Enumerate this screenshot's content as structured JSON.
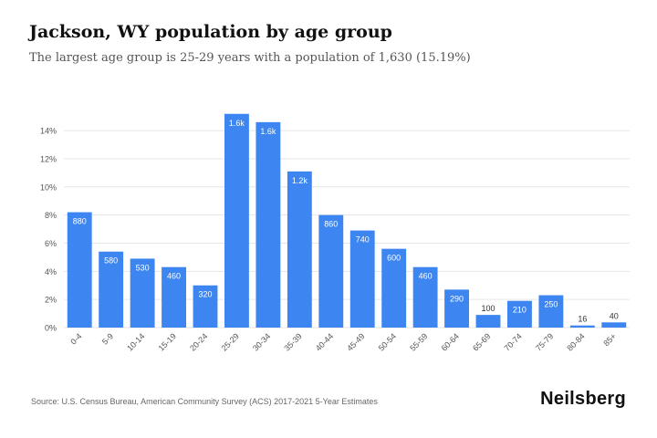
{
  "header": {
    "title": "Jackson, WY population by age group",
    "subtitle": "The largest age group is 25-29 years with a population of 1,630 (15.19%)"
  },
  "footer": {
    "source": "Source: U.S. Census Bureau, American Community Survey (ACS) 2017-2021 5-Year Estimates",
    "brand": "Neilsberg"
  },
  "colors": {
    "bar": "#3d85f0",
    "grid": "#e6e6e6",
    "label_inside": "#ffffff",
    "label_outside": "#333333"
  },
  "chart_data": {
    "type": "bar",
    "title": "Jackson, WY population by age group",
    "subtitle": "The largest age group is 25-29 years with a population of 1,630 (15.19%)",
    "categories": [
      "0-4",
      "5-9",
      "10-14",
      "15-19",
      "20-24",
      "25-29",
      "30-34",
      "35-39",
      "40-44",
      "45-49",
      "50-54",
      "55-59",
      "60-64",
      "65-69",
      "70-74",
      "75-79",
      "80-84",
      "85+"
    ],
    "values": [
      8.2,
      5.4,
      4.9,
      4.3,
      3.0,
      15.19,
      14.6,
      11.1,
      8.0,
      6.9,
      5.6,
      4.3,
      2.7,
      0.9,
      1.9,
      2.3,
      0.15,
      0.37
    ],
    "data_labels": [
      "880",
      "580",
      "530",
      "460",
      "320",
      "1.6k",
      "1.6k",
      "1.2k",
      "860",
      "740",
      "600",
      "460",
      "290",
      "100",
      "210",
      "250",
      "16",
      "40"
    ],
    "ylim": [
      0,
      15.5
    ],
    "yticks": [
      0,
      2,
      4,
      6,
      8,
      10,
      12,
      14
    ],
    "ytick_labels": [
      "0%",
      "2%",
      "4%",
      "6%",
      "8%",
      "10%",
      "12%",
      "14%"
    ],
    "grid": true,
    "legend": "none"
  }
}
